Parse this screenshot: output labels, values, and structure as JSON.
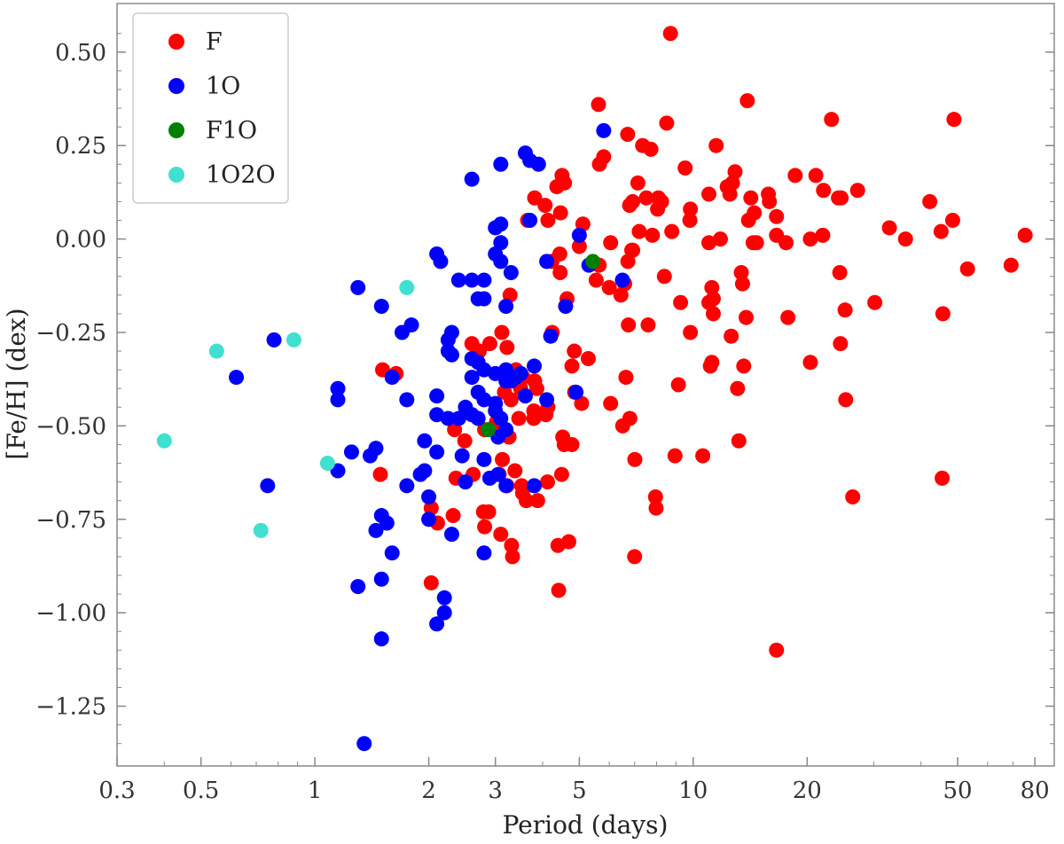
{
  "chart_data": {
    "type": "scatter",
    "title": "",
    "xlabel": "Period (days)",
    "ylabel": "[Fe/H] (dex)",
    "xscale": "log",
    "xlim": [
      0.3,
      90
    ],
    "ylim": [
      -1.41,
      0.63
    ],
    "x_ticks": [
      0.3,
      0.5,
      1,
      2,
      3,
      5,
      10,
      20,
      50,
      80
    ],
    "x_tick_labels": [
      "0.3",
      "0.5",
      "1",
      "2",
      "3",
      "5",
      "10",
      "20",
      "50",
      "80"
    ],
    "y_ticks": [
      0.5,
      0.25,
      0.0,
      -0.25,
      -0.5,
      -0.75,
      -1.0,
      -1.25
    ],
    "y_tick_labels": [
      "0.50",
      "0.25",
      "0.00",
      "−0.25",
      "−0.50",
      "−0.75",
      "−1.00",
      "−1.25"
    ],
    "grid": false,
    "legend_position": "top-left",
    "series": [
      {
        "name": "F",
        "color": "#ff0000",
        "points": [
          [
            8.71,
            0.55
          ],
          [
            5.62,
            0.36
          ],
          [
            13.9,
            0.37
          ],
          [
            23.2,
            0.32
          ],
          [
            48.9,
            0.32
          ],
          [
            8.51,
            0.31
          ],
          [
            11.5,
            0.25
          ],
          [
            7.35,
            0.25
          ],
          [
            9.52,
            0.19
          ],
          [
            5.8,
            0.22
          ],
          [
            5.65,
            0.2
          ],
          [
            7.73,
            0.24
          ],
          [
            18.6,
            0.17
          ],
          [
            21.1,
            0.17
          ],
          [
            12.9,
            0.18
          ],
          [
            15.8,
            0.12
          ],
          [
            12.7,
            0.15
          ],
          [
            16.6,
            0.06
          ],
          [
            22.1,
            0.13
          ],
          [
            24.2,
            0.11
          ],
          [
            27.2,
            0.13
          ],
          [
            11.0,
            0.12
          ],
          [
            12.3,
            0.14
          ],
          [
            12.5,
            0.12
          ],
          [
            14.0,
            0.05
          ],
          [
            14.5,
            0.07
          ],
          [
            14.2,
            0.11
          ],
          [
            15.9,
            0.1
          ],
          [
            4.06,
            0.09
          ],
          [
            3.81,
            0.11
          ],
          [
            4.57,
            0.15
          ],
          [
            4.5,
            0.17
          ],
          [
            4.36,
            0.14
          ],
          [
            6.79,
            0.09
          ],
          [
            7.14,
            0.15
          ],
          [
            7.52,
            0.11
          ],
          [
            8.05,
            0.08
          ],
          [
            8.25,
            0.1
          ],
          [
            9.83,
            0.08
          ],
          [
            9.8,
            0.05
          ],
          [
            6.92,
            0.1
          ],
          [
            8.09,
            0.11
          ],
          [
            3.65,
            0.05
          ],
          [
            4.13,
            0.05
          ],
          [
            4.46,
            0.07
          ],
          [
            5.11,
            0.04
          ],
          [
            6.05,
            -0.01
          ],
          [
            6.71,
            0.28
          ],
          [
            7.2,
            0.02
          ],
          [
            7.8,
            0.01
          ],
          [
            8.78,
            0.02
          ],
          [
            11.0,
            -0.01
          ],
          [
            11.8,
            0.0
          ],
          [
            14.4,
            -0.01
          ],
          [
            14.7,
            -0.01
          ],
          [
            16.6,
            0.01
          ],
          [
            17.6,
            -0.01
          ],
          [
            20.4,
            0.0
          ],
          [
            22.0,
            0.01
          ],
          [
            24.6,
            0.11
          ],
          [
            33.0,
            0.03
          ],
          [
            36.4,
            0.0
          ],
          [
            42.2,
            0.1
          ],
          [
            45.2,
            0.02
          ],
          [
            48.5,
            0.05
          ],
          [
            53.1,
            -0.08
          ],
          [
            69.2,
            -0.07
          ],
          [
            75.4,
            0.01
          ],
          [
            4.23,
            -0.06
          ],
          [
            4.44,
            -0.04
          ],
          [
            5.0,
            -0.02
          ],
          [
            5.64,
            -0.07
          ],
          [
            5.54,
            -0.11
          ],
          [
            6.0,
            -0.13
          ],
          [
            6.59,
            -0.12
          ],
          [
            6.44,
            -0.15
          ],
          [
            6.72,
            -0.06
          ],
          [
            6.92,
            -0.03
          ],
          [
            6.88,
            -0.03
          ],
          [
            8.39,
            -0.1
          ],
          [
            9.26,
            -0.17
          ],
          [
            11.0,
            -0.17
          ],
          [
            11.3,
            -0.16
          ],
          [
            11.2,
            -0.13
          ],
          [
            11.3,
            -0.2
          ],
          [
            13.4,
            -0.09
          ],
          [
            13.5,
            -0.12
          ],
          [
            13.8,
            -0.21
          ],
          [
            12.6,
            -0.26
          ],
          [
            17.8,
            -0.21
          ],
          [
            25.2,
            -0.19
          ],
          [
            24.4,
            -0.09
          ],
          [
            30.2,
            -0.17
          ],
          [
            24.5,
            -0.28
          ],
          [
            45.7,
            -0.2
          ],
          [
            4.45,
            -0.09
          ],
          [
            4.64,
            -0.16
          ],
          [
            3.28,
            -0.15
          ],
          [
            6.74,
            -0.23
          ],
          [
            7.6,
            -0.23
          ],
          [
            9.83,
            -0.25
          ],
          [
            11.2,
            -0.33
          ],
          [
            11.1,
            -0.34
          ],
          [
            13.6,
            -0.34
          ],
          [
            13.1,
            -0.4
          ],
          [
            20.4,
            -0.33
          ],
          [
            9.14,
            -0.39
          ],
          [
            8.95,
            -0.58
          ],
          [
            10.6,
            -0.58
          ],
          [
            13.2,
            -0.54
          ],
          [
            6.64,
            -0.37
          ],
          [
            2.6,
            -0.28
          ],
          [
            2.72,
            -0.3
          ],
          [
            2.9,
            -0.28
          ],
          [
            3.12,
            -0.25
          ],
          [
            3.22,
            -0.29
          ],
          [
            3.4,
            -0.35
          ],
          [
            3.81,
            -0.38
          ],
          [
            3.86,
            -0.4
          ],
          [
            4.24,
            -0.25
          ],
          [
            4.78,
            -0.34
          ],
          [
            4.85,
            -0.3
          ],
          [
            5.28,
            -0.32
          ],
          [
            1.51,
            -0.35
          ],
          [
            1.64,
            -0.36
          ],
          [
            3.17,
            -0.41
          ],
          [
            3.3,
            -0.43
          ],
          [
            3.5,
            -0.4
          ],
          [
            3.55,
            -0.37
          ],
          [
            3.79,
            -0.46
          ],
          [
            4.08,
            -0.47
          ],
          [
            4.13,
            -0.45
          ],
          [
            4.86,
            -0.41
          ],
          [
            2.34,
            -0.51
          ],
          [
            2.49,
            -0.54
          ],
          [
            2.81,
            -0.51
          ],
          [
            3.02,
            -0.49
          ],
          [
            3.26,
            -0.53
          ],
          [
            3.46,
            -0.48
          ],
          [
            3.79,
            -0.48
          ],
          [
            4.52,
            -0.53
          ],
          [
            4.78,
            -0.55
          ],
          [
            5.07,
            -0.44
          ],
          [
            6.05,
            -0.44
          ],
          [
            6.51,
            -0.5
          ],
          [
            6.8,
            -0.48
          ],
          [
            4.56,
            -0.55
          ],
          [
            2.36,
            -0.64
          ],
          [
            2.62,
            -0.63
          ],
          [
            3.13,
            -0.59
          ],
          [
            3.07,
            -0.63
          ],
          [
            3.38,
            -0.62
          ],
          [
            3.52,
            -0.66
          ],
          [
            4.12,
            -0.65
          ],
          [
            4.49,
            -0.63
          ],
          [
            2.88,
            -0.73
          ],
          [
            3.22,
            -0.66
          ],
          [
            3.54,
            -0.68
          ],
          [
            3.62,
            -0.7
          ],
          [
            3.88,
            -0.7
          ],
          [
            3.1,
            -0.79
          ],
          [
            2.03,
            -0.72
          ],
          [
            2.11,
            -0.76
          ],
          [
            2.32,
            -0.74
          ],
          [
            2.79,
            -0.73
          ],
          [
            2.81,
            -0.77
          ],
          [
            3.31,
            -0.82
          ],
          [
            3.33,
            -0.85
          ],
          [
            4.39,
            -0.82
          ],
          [
            4.69,
            -0.81
          ],
          [
            2.03,
            -0.92
          ],
          [
            4.41,
            -0.94
          ],
          [
            7.01,
            -0.59
          ],
          [
            7.95,
            -0.69
          ],
          [
            7.98,
            -0.72
          ],
          [
            7.0,
            -0.85
          ],
          [
            1.49,
            -0.63
          ],
          [
            26.4,
            -0.69
          ],
          [
            25.3,
            -0.43
          ],
          [
            45.5,
            -0.64
          ],
          [
            16.6,
            -1.1
          ]
        ]
      },
      {
        "name": "1O",
        "color": "#0000ff",
        "points": [
          [
            5.8,
            0.29
          ],
          [
            3.6,
            0.23
          ],
          [
            3.7,
            0.21
          ],
          [
            3.9,
            0.2
          ],
          [
            3.1,
            0.2
          ],
          [
            2.6,
            0.16
          ],
          [
            3.7,
            0.05
          ],
          [
            3.0,
            0.03
          ],
          [
            3.1,
            0.04
          ],
          [
            3.1,
            -0.01
          ],
          [
            3.0,
            -0.04
          ],
          [
            3.1,
            -0.06
          ],
          [
            2.1,
            -0.04
          ],
          [
            2.15,
            -0.06
          ],
          [
            3.3,
            -0.09
          ],
          [
            4.1,
            -0.06
          ],
          [
            5.3,
            -0.07
          ],
          [
            6.5,
            -0.11
          ],
          [
            5.0,
            0.01
          ],
          [
            2.4,
            -0.11
          ],
          [
            2.6,
            -0.11
          ],
          [
            2.8,
            -0.11
          ],
          [
            2.7,
            -0.16
          ],
          [
            2.8,
            -0.16
          ],
          [
            3.2,
            -0.18
          ],
          [
            1.3,
            -0.13
          ],
          [
            1.5,
            -0.18
          ],
          [
            1.8,
            -0.23
          ],
          [
            1.7,
            -0.25
          ],
          [
            0.78,
            -0.27
          ],
          [
            2.25,
            -0.27
          ],
          [
            2.3,
            -0.25
          ],
          [
            2.25,
            -0.3
          ],
          [
            2.3,
            -0.31
          ],
          [
            2.6,
            -0.32
          ],
          [
            2.7,
            -0.33
          ],
          [
            2.8,
            -0.35
          ],
          [
            3.0,
            -0.36
          ],
          [
            3.2,
            -0.35
          ],
          [
            3.4,
            -0.37
          ],
          [
            3.5,
            -0.36
          ],
          [
            4.2,
            -0.26
          ],
          [
            4.6,
            -0.18
          ],
          [
            3.8,
            -0.34
          ],
          [
            0.62,
            -0.37
          ],
          [
            1.6,
            -0.37
          ],
          [
            1.15,
            -0.4
          ],
          [
            1.15,
            -0.43
          ],
          [
            1.75,
            -0.43
          ],
          [
            2.1,
            -0.42
          ],
          [
            2.6,
            -0.37
          ],
          [
            2.7,
            -0.41
          ],
          [
            2.8,
            -0.43
          ],
          [
            3.0,
            -0.44
          ],
          [
            3.2,
            -0.38
          ],
          [
            3.3,
            -0.38
          ],
          [
            3.6,
            -0.42
          ],
          [
            4.1,
            -0.43
          ],
          [
            4.9,
            -0.41
          ],
          [
            2.1,
            -0.47
          ],
          [
            2.25,
            -0.48
          ],
          [
            2.4,
            -0.48
          ],
          [
            2.5,
            -0.45
          ],
          [
            2.6,
            -0.47
          ],
          [
            2.7,
            -0.48
          ],
          [
            3.0,
            -0.46
          ],
          [
            3.1,
            -0.48
          ],
          [
            3.2,
            -0.51
          ],
          [
            3.05,
            -0.53
          ],
          [
            1.95,
            -0.54
          ],
          [
            2.1,
            -0.57
          ],
          [
            1.25,
            -0.57
          ],
          [
            1.45,
            -0.56
          ],
          [
            1.4,
            -0.58
          ],
          [
            1.15,
            -0.62
          ],
          [
            1.95,
            -0.62
          ],
          [
            1.9,
            -0.63
          ],
          [
            2.45,
            -0.58
          ],
          [
            2.8,
            -0.59
          ],
          [
            2.9,
            -0.64
          ],
          [
            3.05,
            -0.63
          ],
          [
            3.2,
            -0.66
          ],
          [
            3.8,
            -0.66
          ],
          [
            2.5,
            -0.65
          ],
          [
            1.75,
            -0.66
          ],
          [
            0.75,
            -0.66
          ],
          [
            2.0,
            -0.69
          ],
          [
            2.0,
            -0.75
          ],
          [
            2.3,
            -0.79
          ],
          [
            1.5,
            -0.74
          ],
          [
            1.55,
            -0.76
          ],
          [
            1.45,
            -0.78
          ],
          [
            1.6,
            -0.84
          ],
          [
            2.8,
            -0.84
          ],
          [
            1.3,
            -0.93
          ],
          [
            1.5,
            -0.91
          ],
          [
            2.2,
            -0.96
          ],
          [
            2.2,
            -1.0
          ],
          [
            2.1,
            -1.03
          ],
          [
            1.5,
            -1.07
          ],
          [
            1.35,
            -1.35
          ]
        ]
      },
      {
        "name": "F1O",
        "color": "#008000",
        "points": [
          [
            5.43,
            -0.06
          ],
          [
            2.87,
            -0.51
          ]
        ]
      },
      {
        "name": "1O2O",
        "color": "#40e0d0",
        "points": [
          [
            0.4,
            -0.54
          ],
          [
            0.55,
            -0.3
          ],
          [
            0.88,
            -0.27
          ],
          [
            1.75,
            -0.13
          ],
          [
            1.08,
            -0.6
          ],
          [
            0.72,
            -0.78
          ]
        ]
      }
    ]
  }
}
